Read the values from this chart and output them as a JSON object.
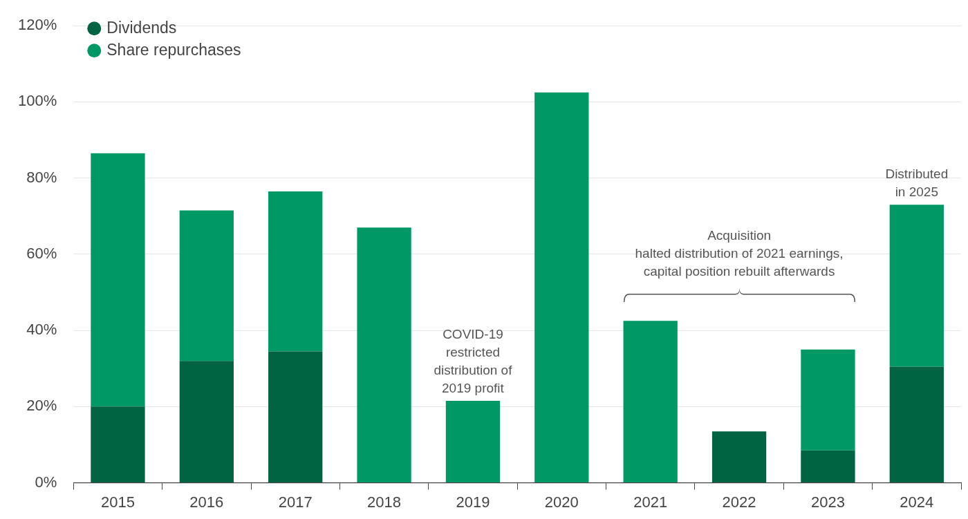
{
  "chart_data": {
    "type": "bar",
    "stacked": true,
    "categories": [
      "2015",
      "2016",
      "2017",
      "2018",
      "2019",
      "2020",
      "2021",
      "2022",
      "2023",
      "2024"
    ],
    "series": [
      {
        "name": "Dividends",
        "color": "#006341",
        "values": [
          20,
          32,
          34.5,
          0,
          0,
          0,
          0,
          13.5,
          8.5,
          30.5
        ]
      },
      {
        "name": "Share repurchases",
        "color": "#009966",
        "values": [
          66.5,
          39.5,
          42,
          67,
          21.5,
          102.5,
          42.5,
          0,
          26.5,
          42.5
        ]
      }
    ],
    "ylim": [
      0,
      120
    ],
    "yticks": [
      {
        "value": 0,
        "label": "0%"
      },
      {
        "value": 20,
        "label": "20%"
      },
      {
        "value": 40,
        "label": "40%"
      },
      {
        "value": 60,
        "label": "60%"
      },
      {
        "value": 80,
        "label": "80%"
      },
      {
        "value": 100,
        "label": "100%"
      },
      {
        "value": 120,
        "label": "120%"
      }
    ],
    "grid": "y",
    "legend": "top left",
    "annotations": [
      {
        "text": "COVID-19\nrestricted\ndistribution of\n2019 profit",
        "x": "2019",
        "y": 21.5
      },
      "Acquisition\nhalted distribution of 2021 earnings,\ncapital position rebuilt afterwards",
      {
        "text": "Distributed\nin 2025",
        "x": "2024",
        "y": 73
      }
    ]
  }
}
